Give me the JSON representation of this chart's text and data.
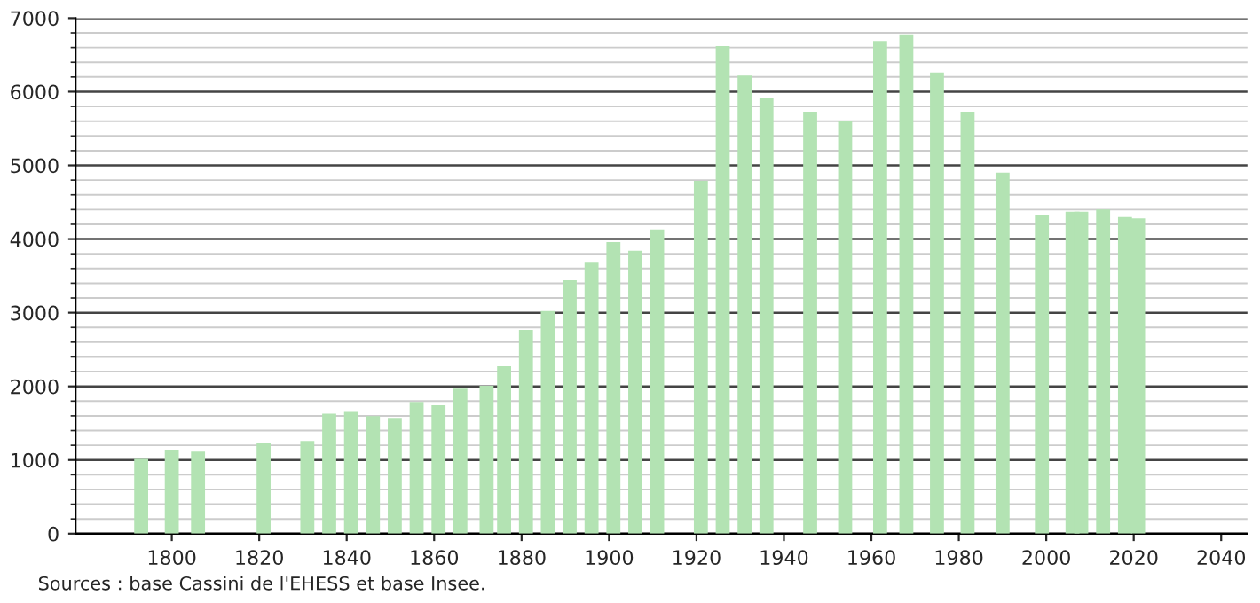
{
  "chart_data": {
    "type": "bar",
    "x": [
      1793,
      1800,
      1806,
      1821,
      1831,
      1836,
      1841,
      1846,
      1851,
      1856,
      1861,
      1866,
      1872,
      1876,
      1881,
      1886,
      1891,
      1896,
      1901,
      1906,
      1911,
      1921,
      1926,
      1931,
      1936,
      1946,
      1954,
      1962,
      1968,
      1975,
      1982,
      1990,
      1999,
      2006,
      2008,
      2013,
      2018,
      2021
    ],
    "values": [
      1016,
      1137,
      1113,
      1226,
      1258,
      1629,
      1653,
      1597,
      1573,
      1790,
      1742,
      1968,
      2008,
      2274,
      2766,
      3024,
      3440,
      3680,
      3960,
      3840,
      4130,
      4790,
      6620,
      6220,
      5920,
      5730,
      5600,
      6690,
      6780,
      6260,
      5730,
      4900,
      4320,
      4370,
      4370,
      4400,
      4300,
      4280
    ],
    "color": "#b3e3b3",
    "xlim": [
      1778,
      2046
    ],
    "xticks": [
      1800,
      1820,
      1840,
      1860,
      1880,
      1900,
      1920,
      1940,
      1960,
      1980,
      2000,
      2020,
      2040
    ],
    "ylim": [
      0,
      7000
    ],
    "yticks": [
      0,
      1000,
      2000,
      3000,
      4000,
      5000,
      6000,
      7000
    ],
    "grid": "y",
    "legend": false,
    "annotations": [
      "Sources : base Cassini de l'EHESS et base Insee."
    ]
  }
}
